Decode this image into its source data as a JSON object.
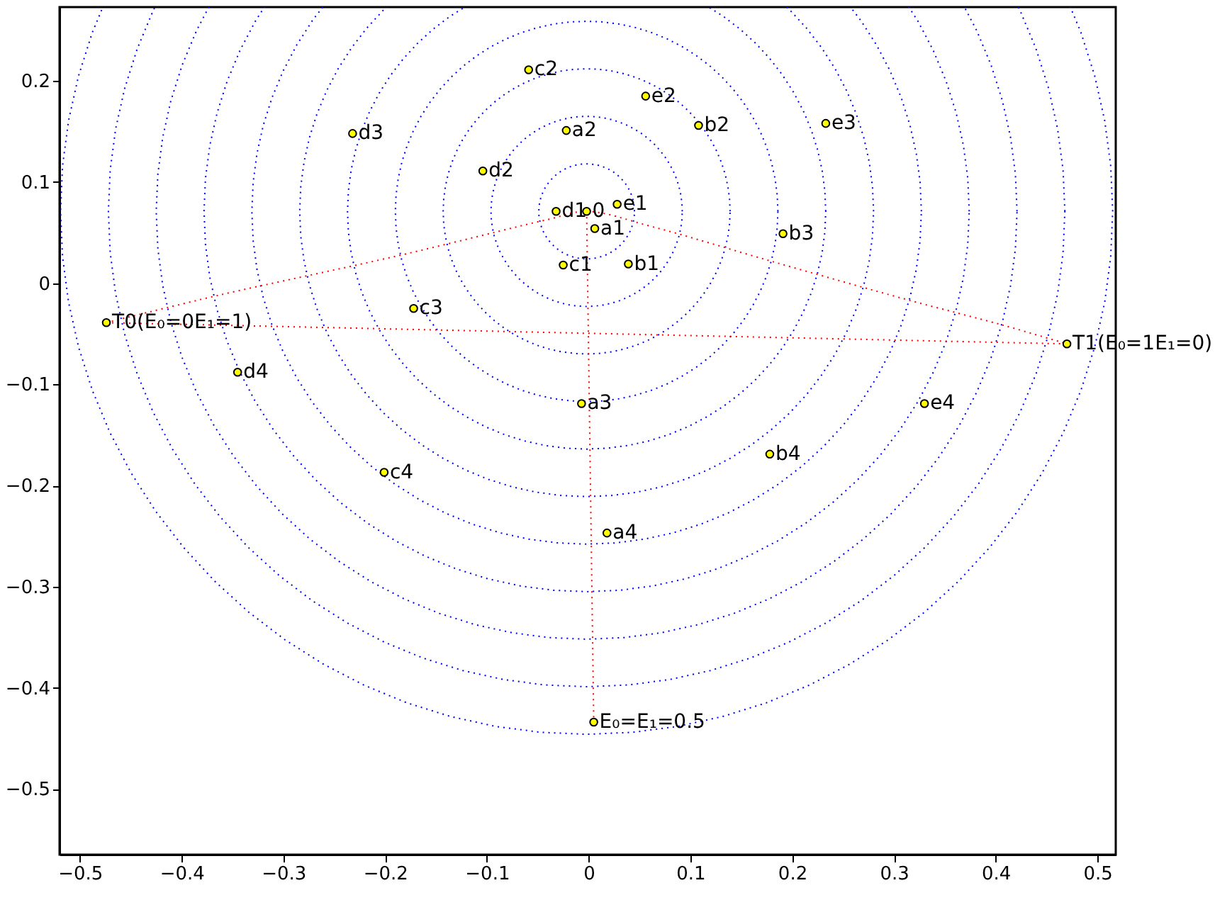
{
  "chart_data": {
    "type": "scatter",
    "xlim": [
      -0.52,
      0.518
    ],
    "ylim": [
      -0.565,
      0.273
    ],
    "xticks": [
      -0.5,
      -0.4,
      -0.3,
      -0.2,
      -0.1,
      {
        "value": 0,
        "label": "0"
      },
      0.1,
      0.2,
      0.3,
      0.4,
      0.5
    ],
    "yticks": [
      -0.5,
      -0.4,
      -0.3,
      -0.2,
      -0.1,
      {
        "value": 0,
        "label": "0"
      },
      0.1,
      0.2
    ],
    "annotations": [
      {
        "text": "T0(E₀=0E₁=1)",
        "x": -0.474,
        "y": -0.039
      },
      {
        "text": "T1(E₀=1E₁=0)",
        "x": 0.47,
        "y": -0.06
      },
      {
        "text": "E₀=E₁=0.5",
        "x": 0.005,
        "y": -0.434
      }
    ],
    "series": [
      {
        "type": "line",
        "color": "#ff0000",
        "line_style": "dotted",
        "x": [
          -0.474,
          -0.364,
          -0.188,
          -0.04,
          -0.002,
          0.062,
          0.182,
          0.312,
          0.409,
          0.47
        ],
        "values": [
          -0.039,
          -0.012,
          0.027,
          0.063,
          0.071,
          0.056,
          0.021,
          -0.016,
          -0.042,
          -0.06
        ]
      },
      {
        "type": "line",
        "color": "#ff0000",
        "line_style": "dotted",
        "x": [
          -0.474,
          0.47
        ],
        "values": [
          -0.039,
          -0.06
        ]
      },
      {
        "type": "line",
        "color": "#ff0000",
        "line_style": "dotted",
        "x": [
          -0.002,
          0.005
        ],
        "values": [
          0.071,
          -0.434
        ]
      },
      {
        "type": "scatter",
        "color": "#ffff00",
        "marker": "circle",
        "x": [
          -0.002,
          0.006,
          -0.022,
          -0.007,
          0.018,
          0.039,
          0.108,
          0.191,
          0.178,
          -0.025,
          -0.059,
          -0.172,
          -0.201,
          -0.032,
          -0.104,
          -0.232,
          -0.345,
          0.028,
          0.056,
          0.233,
          0.33,
          -0.474,
          0.47,
          0.005
        ],
        "values": [
          0.071,
          0.054,
          0.151,
          -0.119,
          -0.247,
          0.019,
          0.156,
          0.049,
          -0.169,
          0.018,
          0.211,
          -0.025,
          -0.187,
          0.071,
          0.111,
          0.148,
          -0.088,
          0.078,
          0.185,
          0.158,
          -0.119,
          -0.039,
          -0.06,
          -0.434
        ],
        "value_labels": [
          "0",
          "a1",
          "a2",
          "a3",
          "a4",
          "b1",
          "b2",
          "b3",
          "b4",
          "c1",
          "c2",
          "c3",
          "c4",
          "d1",
          "d2",
          "d3",
          "d4",
          "e1",
          "e2",
          "e3",
          "e4",
          null,
          null,
          null
        ]
      }
    ]
  }
}
